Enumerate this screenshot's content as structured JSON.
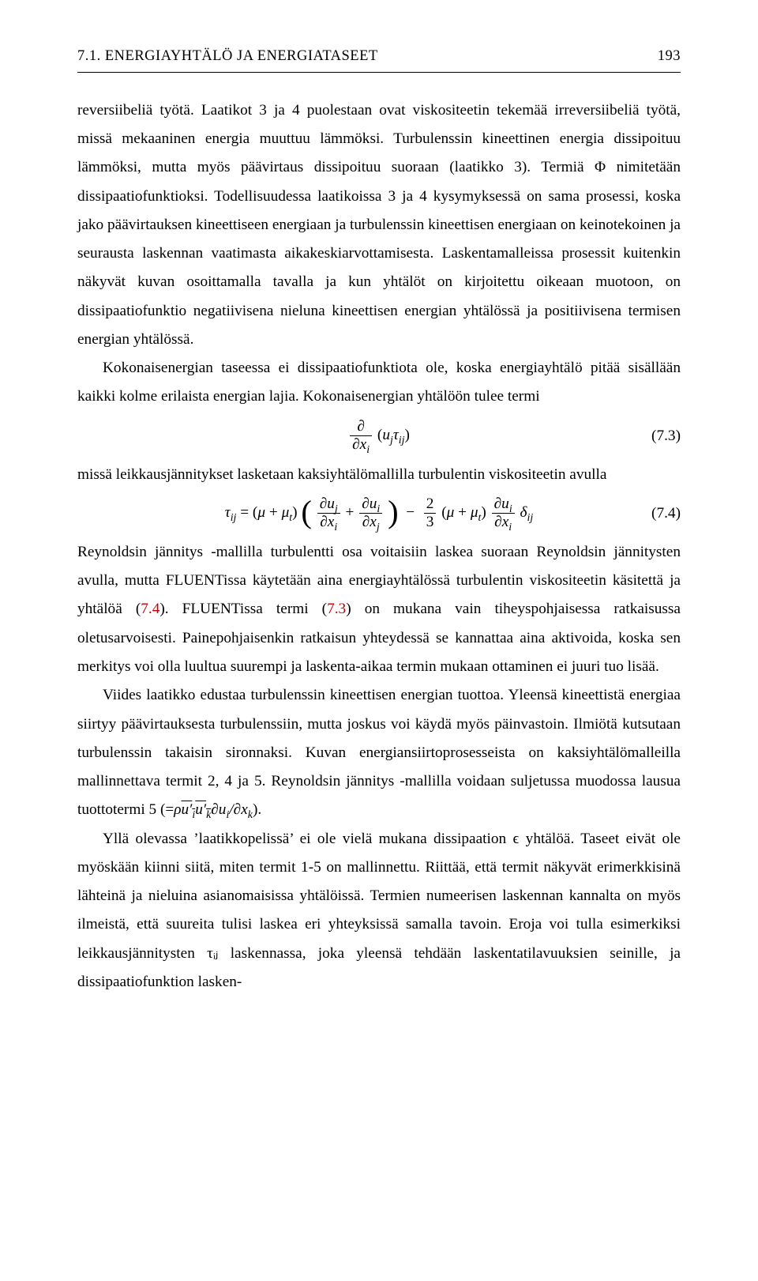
{
  "header": {
    "title": "7.1. ENERGIAYHTÄLÖ JA ENERGIATASEET",
    "pagenum": "193"
  },
  "para1": "reversiibeliä työtä. Laatikot 3 ja 4 puolestaan ovat viskositeetin tekemää irreversiibeliä työtä, missä mekaaninen energia muuttuu lämmöksi. Turbulenssin kineettinen energia dissipoituu lämmöksi, mutta myös päävirtaus dissipoituu suoraan (laatikko 3). Termiä Φ nimitetään dissipaatiofunktioksi. Todellisuudessa laatikoissa 3 ja 4 kysymyksessä on sama prosessi, koska jako päävirtauksen kineettiseen energiaan ja turbulenssin kineettisen energiaan on keinotekoinen ja seurausta laskennan vaatimasta aikakeskiarvottamisesta. Laskentamalleissa prosessit kuitenkin näkyvät kuvan osoittamalla tavalla ja kun yhtälöt on kirjoitettu oikeaan muotoon, on dissipaatiofunktio negatiivisena nieluna kineettisen energian yhtälössä ja positiivisena termisen energian yhtälössä.",
  "para2": "Kokonaisenergian taseessa ei dissipaatiofunktiota ole, koska energiayhtälö pitää sisällään kaikki kolme erilaista energian lajia. Kokonaisenergian yhtälöön tulee termi",
  "eq73_num": "(7.3)",
  "para3": "missä leikkausjännitykset lasketaan kaksiyhtälömallilla turbulentin viskositeetin avulla",
  "eq74_num": "(7.4)",
  "para4a": "Reynoldsin jännitys -mallilla turbulentti osa voitaisiin laskea suoraan Reynoldsin jännitysten avulla, mutta FLUENTissa käytetään aina energiayhtälössä turbulentin viskositeetin käsitettä ja yhtälöä (",
  "para4ref1": "7.4",
  "para4b": "). FLUENTissa termi (",
  "para4ref2": "7.3",
  "para4c": ") on mukana vain tiheyspohjaisessa ratkaisussa oletusarvoisesti. Painepohjaisenkin ratkaisun yhteydessä se kannattaa aina aktivoida, koska sen merkitys voi olla luultua suurempi ja laskenta-aikaa termin mukaan ottaminen ei juuri tuo lisää.",
  "para5": "Viides laatikko edustaa turbulenssin kineettisen energian tuottoa. Yleensä kineettistä energiaa siirtyy päävirtauksesta turbulenssiin, mutta joskus voi käydä myös päinvastoin. Ilmiötä kutsutaan turbulenssin takaisin sironnaksi. Kuvan energiansiirtoprosesseista on kaksiyhtälömalleilla mallinnettava termit 2, 4 ja 5. Reynoldsin jännitys -mallilla voidaan suljetussa muodossa lausua tuottotermi 5 (=",
  "para6": "Yllä olevassa ’laatikkopelissä’ ei ole vielä mukana dissipaation ϵ yhtälöä. Taseet eivät ole myöskään kiinni siitä, miten termit 1-5 on mallinnettu. Riittää, että termit näkyvät erimerkkisinä lähteinä ja nieluina asianomaisissa yhtälöissä. Termien numeerisen laskennan kannalta on myös ilmeistä, että suureita tulisi laskea eri yhteyksissä samalla tavoin. Eroja voi tulla esimerkiksi leikkausjännitysten τᵢⱼ laskennassa, joka yleensä tehdään laskentatilavuuksien seinille, ja dissipaatiofunktion lasken-"
}
